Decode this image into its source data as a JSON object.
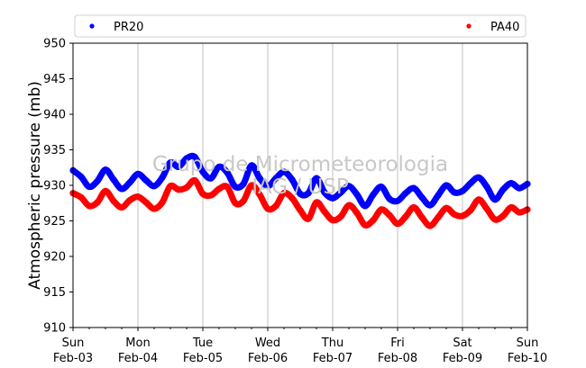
{
  "chart_data": {
    "type": "scatter",
    "ylabel": "Atmospheric pressure (mb)",
    "xlabel": "",
    "ylim": [
      910,
      950
    ],
    "yticks": [
      910,
      915,
      920,
      925,
      930,
      935,
      940,
      945,
      950
    ],
    "xlim": [
      "2019-02-03",
      "2019-02-10"
    ],
    "xticks": [
      {
        "day": "Sun",
        "date": "Feb-03"
      },
      {
        "day": "Mon",
        "date": "Feb-04"
      },
      {
        "day": "Tue",
        "date": "Feb-05"
      },
      {
        "day": "Wed",
        "date": "Feb-06"
      },
      {
        "day": "Thu",
        "date": "Feb-07"
      },
      {
        "day": "Fri",
        "date": "Feb-08"
      },
      {
        "day": "Sat",
        "date": "Feb-09"
      },
      {
        "day": "Sun",
        "date": "Feb-10"
      }
    ],
    "grid": "vertical",
    "legend_position": "top",
    "watermark": [
      "Grupo de Micrometeorologia",
      "IAG / USP"
    ],
    "series": [
      {
        "name": "PR20",
        "color": "#0000ff",
        "x": [
          "2019-02-03 00:00",
          "2019-02-03 03:00",
          "2019-02-03 06:00",
          "2019-02-03 09:00",
          "2019-02-03 12:00",
          "2019-02-03 15:00",
          "2019-02-03 18:00",
          "2019-02-03 21:00",
          "2019-02-04 00:00",
          "2019-02-04 03:00",
          "2019-02-04 06:00",
          "2019-02-04 09:00",
          "2019-02-04 12:00",
          "2019-02-04 15:00",
          "2019-02-04 18:00",
          "2019-02-04 21:00",
          "2019-02-05 00:00",
          "2019-02-05 03:00",
          "2019-02-05 06:00",
          "2019-02-05 09:00",
          "2019-02-05 12:00",
          "2019-02-05 15:00",
          "2019-02-05 18:00",
          "2019-02-05 21:00",
          "2019-02-06 00:00",
          "2019-02-06 03:00",
          "2019-02-06 06:00",
          "2019-02-06 09:00",
          "2019-02-06 12:00",
          "2019-02-06 15:00",
          "2019-02-06 18:00",
          "2019-02-06 21:00",
          "2019-02-07 00:00",
          "2019-02-07 03:00",
          "2019-02-07 06:00",
          "2019-02-07 09:00",
          "2019-02-07 12:00",
          "2019-02-07 15:00",
          "2019-02-07 18:00",
          "2019-02-07 21:00",
          "2019-02-08 00:00",
          "2019-02-08 03:00",
          "2019-02-08 06:00",
          "2019-02-08 09:00",
          "2019-02-08 12:00",
          "2019-02-08 15:00",
          "2019-02-08 18:00",
          "2019-02-08 21:00",
          "2019-02-09 00:00",
          "2019-02-09 03:00",
          "2019-02-09 06:00",
          "2019-02-09 09:00",
          "2019-02-09 12:00",
          "2019-02-09 15:00",
          "2019-02-09 18:00",
          "2019-02-09 21:00",
          "2019-02-10 00:00"
        ],
        "y": [
          932.1,
          931.2,
          929.8,
          930.6,
          932.2,
          930.8,
          929.5,
          930.4,
          931.6,
          930.7,
          929.9,
          931.1,
          933.2,
          932.6,
          933.8,
          934.0,
          931.9,
          931.0,
          932.6,
          931.8,
          929.8,
          930.2,
          932.8,
          931.0,
          929.9,
          931.0,
          931.9,
          930.8,
          928.8,
          928.9,
          931.0,
          929.0,
          928.2,
          929.0,
          929.9,
          928.7,
          927.1,
          928.7,
          929.8,
          928.1,
          927.8,
          928.9,
          929.6,
          928.3,
          927.2,
          928.6,
          930.0,
          929.0,
          929.2,
          930.3,
          931.1,
          929.8,
          928.0,
          929.4,
          930.3,
          929.6,
          930.2
        ]
      },
      {
        "name": "PA40",
        "color": "#ff0000",
        "x": [
          "2019-02-03 00:00",
          "2019-02-03 03:00",
          "2019-02-03 06:00",
          "2019-02-03 09:00",
          "2019-02-03 12:00",
          "2019-02-03 15:00",
          "2019-02-03 18:00",
          "2019-02-03 21:00",
          "2019-02-04 00:00",
          "2019-02-04 03:00",
          "2019-02-04 06:00",
          "2019-02-04 09:00",
          "2019-02-04 12:00",
          "2019-02-04 15:00",
          "2019-02-04 18:00",
          "2019-02-04 21:00",
          "2019-02-05 00:00",
          "2019-02-05 03:00",
          "2019-02-05 06:00",
          "2019-02-05 09:00",
          "2019-02-05 12:00",
          "2019-02-05 15:00",
          "2019-02-05 18:00",
          "2019-02-05 21:00",
          "2019-02-06 00:00",
          "2019-02-06 03:00",
          "2019-02-06 06:00",
          "2019-02-06 09:00",
          "2019-02-06 12:00",
          "2019-02-06 15:00",
          "2019-02-06 18:00",
          "2019-02-06 21:00",
          "2019-02-07 00:00",
          "2019-02-07 03:00",
          "2019-02-07 06:00",
          "2019-02-07 09:00",
          "2019-02-07 12:00",
          "2019-02-07 15:00",
          "2019-02-07 18:00",
          "2019-02-07 21:00",
          "2019-02-08 00:00",
          "2019-02-08 03:00",
          "2019-02-08 06:00",
          "2019-02-08 09:00",
          "2019-02-08 12:00",
          "2019-02-08 15:00",
          "2019-02-08 18:00",
          "2019-02-08 21:00",
          "2019-02-09 00:00",
          "2019-02-09 03:00",
          "2019-02-09 06:00",
          "2019-02-09 09:00",
          "2019-02-09 12:00",
          "2019-02-09 15:00",
          "2019-02-09 18:00",
          "2019-02-09 21:00",
          "2019-02-10 00:00"
        ],
        "y": [
          928.9,
          928.3,
          927.1,
          927.6,
          929.2,
          927.8,
          926.9,
          927.9,
          928.4,
          927.6,
          926.7,
          927.6,
          929.9,
          929.4,
          929.7,
          930.7,
          928.8,
          928.6,
          929.5,
          929.8,
          927.5,
          927.8,
          930.0,
          928.7,
          926.7,
          927.1,
          928.9,
          928.2,
          926.5,
          925.3,
          927.6,
          926.3,
          925.1,
          925.6,
          927.2,
          926.1,
          924.4,
          925.1,
          926.6,
          925.8,
          924.6,
          925.6,
          926.9,
          925.5,
          924.3,
          925.5,
          926.8,
          925.9,
          925.7,
          926.5,
          928.0,
          926.7,
          925.2,
          925.7,
          926.9,
          926.2,
          926.6
        ]
      }
    ]
  }
}
